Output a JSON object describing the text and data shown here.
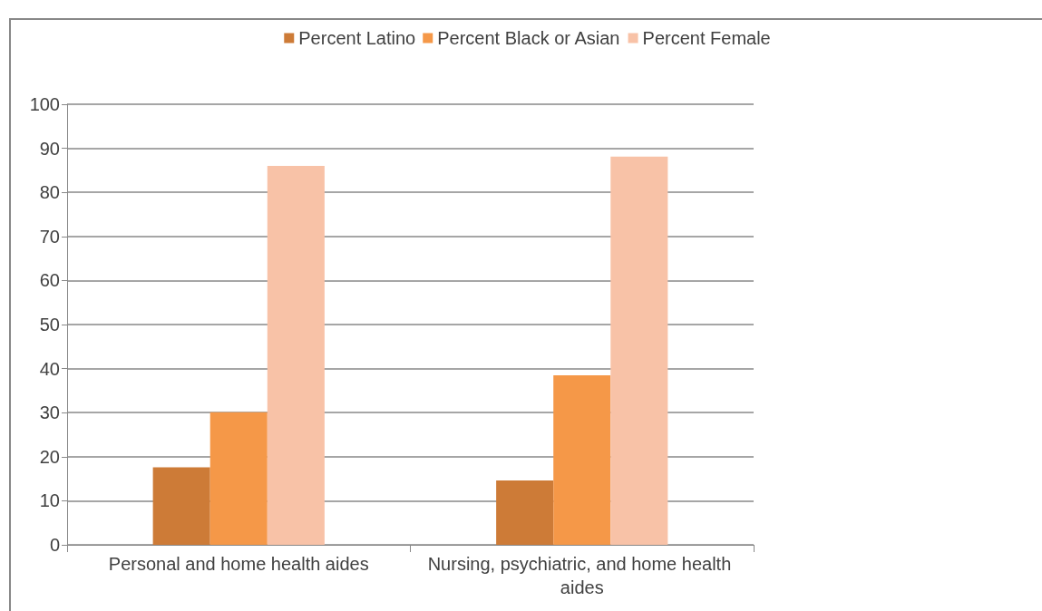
{
  "chart_data": {
    "type": "bar",
    "categories": [
      "Personal and home health aides",
      "Nursing, psychiatric, and home health aides"
    ],
    "series": [
      {
        "name": "Percent Latino",
        "color": "#cd7b37",
        "values": [
          17.6,
          14.6
        ]
      },
      {
        "name": "Percent Black or Asian",
        "color": "#f59848",
        "values": [
          30.1,
          38.5
        ]
      },
      {
        "name": "Percent Female",
        "color": "#f8c2a7",
        "values": [
          86.0,
          88.1
        ]
      }
    ],
    "ylim": [
      0,
      100
    ],
    "yticks": [
      0,
      10,
      20,
      30,
      40,
      50,
      60,
      70,
      80,
      90,
      100
    ],
    "grid": "y",
    "legend": "top"
  }
}
